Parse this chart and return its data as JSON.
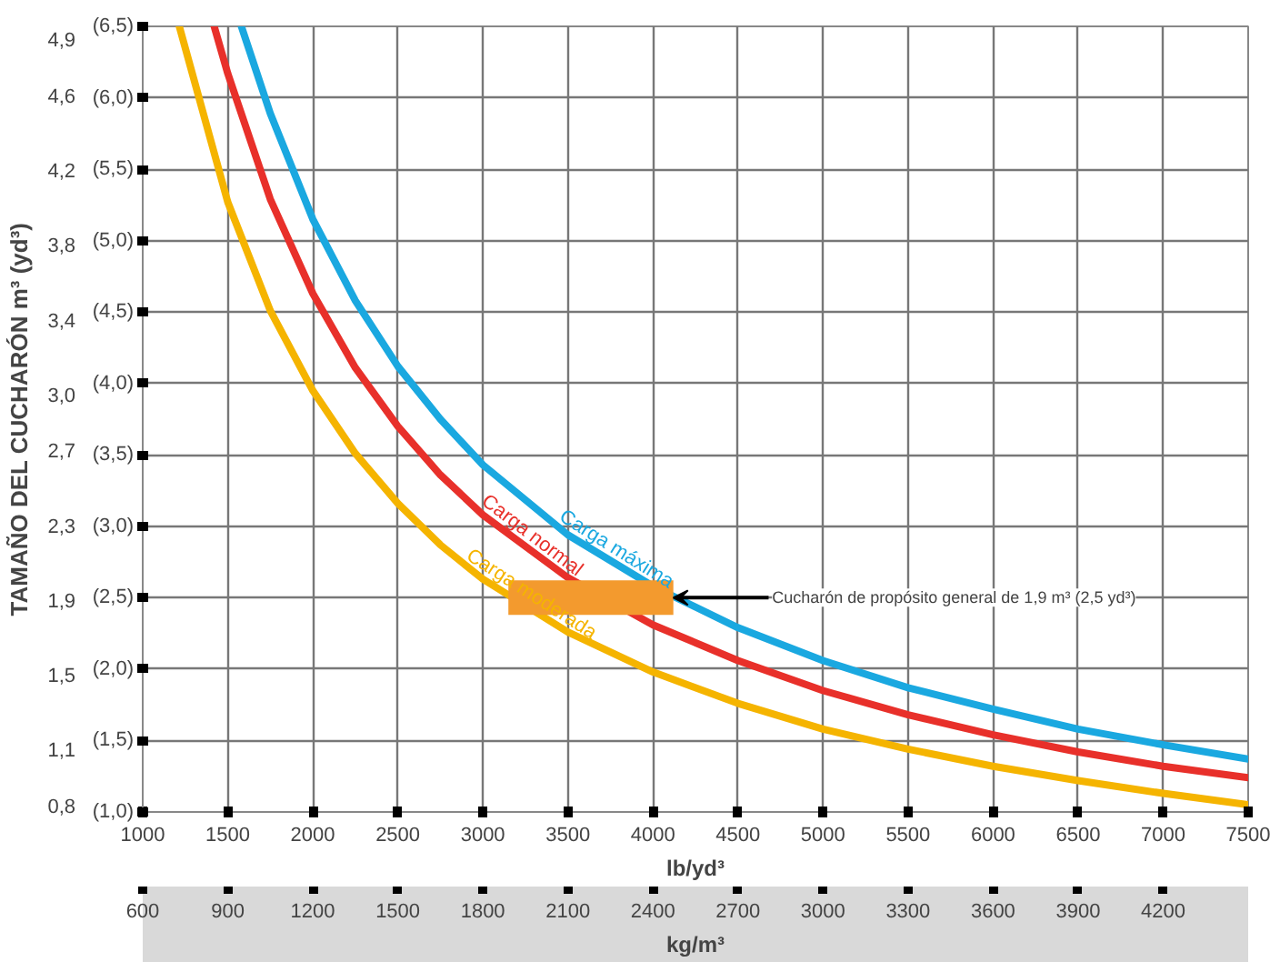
{
  "chart_data": {
    "type": "line",
    "y2label": "TAMAÑO DEL CUCHARÓN m³ (yd³)",
    "xlabel": "lb/yd³",
    "x2label": "kg/m³",
    "xlim": [
      1000,
      7500
    ],
    "xticks": [
      1000,
      1500,
      2000,
      2500,
      3000,
      3500,
      4000,
      4500,
      5000,
      5500,
      6000,
      6500,
      7000,
      7500
    ],
    "x2lim": [
      600,
      4500
    ],
    "x2ticks": [
      600,
      900,
      1200,
      1500,
      1800,
      2100,
      2400,
      2700,
      3000,
      3300,
      3600,
      3900,
      4200
    ],
    "ylim": [
      1.0,
      6.5
    ],
    "yticks": [
      {
        "value": 1.0,
        "label": "(1,0)"
      },
      {
        "value": 1.5,
        "label": "(1,5)"
      },
      {
        "value": 2.0,
        "label": "(2,0)"
      },
      {
        "value": 2.5,
        "label": "(2,5)"
      },
      {
        "value": 3.0,
        "label": "(3,0)"
      },
      {
        "value": 3.5,
        "label": "(3,5)"
      },
      {
        "value": 4.0,
        "label": "(4,0)"
      },
      {
        "value": 4.5,
        "label": "(4,5)"
      },
      {
        "value": 5.0,
        "label": "(5,0)"
      },
      {
        "value": 5.5,
        "label": "(5,5)"
      },
      {
        "value": 6.0,
        "label": "(6,0)"
      },
      {
        "value": 6.5,
        "label": "(6,5)"
      }
    ],
    "y2lim": [
      0.765,
      4.97
    ],
    "y2ticks": [
      {
        "value": 0.8,
        "label": "0,8"
      },
      {
        "value": 1.1,
        "label": "1,1"
      },
      {
        "value": 1.5,
        "label": "1,5"
      },
      {
        "value": 1.9,
        "label": "1,9"
      },
      {
        "value": 2.3,
        "label": "2,3"
      },
      {
        "value": 2.7,
        "label": "2,7"
      },
      {
        "value": 3.0,
        "label": "3,0"
      },
      {
        "value": 3.4,
        "label": "3,4"
      },
      {
        "value": 3.8,
        "label": "3,8"
      },
      {
        "value": 4.2,
        "label": "4,2"
      },
      {
        "value": 4.6,
        "label": "4,6"
      },
      {
        "value": 4.9,
        "label": "4,9"
      }
    ],
    "grid": true,
    "line_style": "solid",
    "series": [
      {
        "name": "Carga moderada",
        "color": "#f5b400",
        "x": [
          1215,
          1500,
          1750,
          2000,
          2250,
          2500,
          2750,
          3000,
          3500,
          4000,
          4500,
          5000,
          5500,
          6000,
          6500,
          7000,
          7500
        ],
        "values": [
          6.5,
          5.27,
          4.51,
          3.95,
          3.51,
          3.16,
          2.87,
          2.63,
          2.26,
          1.98,
          1.76,
          1.58,
          1.44,
          1.32,
          1.22,
          1.13,
          1.05
        ]
      },
      {
        "name": "Carga normal",
        "color": "#e8302a",
        "x": [
          1420,
          1500,
          1750,
          2000,
          2250,
          2500,
          2750,
          3000,
          3500,
          4000,
          4500,
          5000,
          5500,
          6000,
          6500,
          7000,
          7500
        ],
        "values": [
          6.5,
          6.17,
          5.29,
          4.63,
          4.11,
          3.7,
          3.36,
          3.08,
          2.64,
          2.31,
          2.06,
          1.85,
          1.68,
          1.54,
          1.42,
          1.32,
          1.24
        ]
      },
      {
        "name": "Carga máxima",
        "color": "#1aa8e0",
        "x": [
          1580,
          1750,
          2000,
          2250,
          2500,
          2750,
          3000,
          3500,
          4000,
          4500,
          5000,
          5500,
          6000,
          6500,
          7000,
          7500
        ],
        "values": [
          6.5,
          5.89,
          5.15,
          4.58,
          4.12,
          3.75,
          3.43,
          2.94,
          2.58,
          2.29,
          2.06,
          1.87,
          1.72,
          1.58,
          1.47,
          1.37
        ]
      },
      {
        "type": "line",
        "color": "#f39a2e",
        "x": [
          3150,
          4120
        ],
        "values": [
          2.5,
          2.5
        ]
      }
    ],
    "annotations": [
      {
        "text": "Cucharón de propósito general de 1,9 m³ (2,5 yd³)",
        "x": 4120,
        "y": 2.5
      }
    ]
  }
}
